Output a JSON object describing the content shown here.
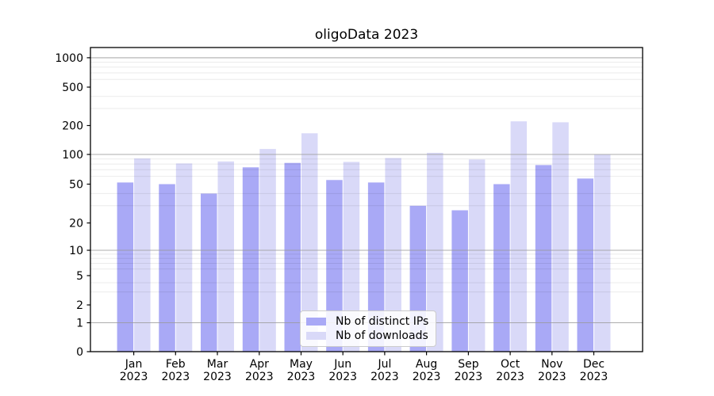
{
  "figure": {
    "title": "oligoData 2023",
    "background": "#ffffff"
  },
  "colors": {
    "distinct_ips_bar": "#a9a9f6",
    "downloads_bar": "#d9d9f8",
    "grid_major": "#b0b0b0",
    "grid_minor": "#ebebeb",
    "axis_spine": "#000000",
    "legend_border": "#cccccc"
  },
  "chart_data": {
    "type": "bar",
    "title": "oligoData 2023",
    "categories": [
      "Jan 2023",
      "Feb 2023",
      "Mar 2023",
      "Apr 2023",
      "May 2023",
      "Jun 2023",
      "Jul 2023",
      "Aug 2023",
      "Sep 2023",
      "Oct 2023",
      "Nov 2023",
      "Dec 2023"
    ],
    "series": [
      {
        "key": "distinct-ips",
        "name": "Nb of distinct IPs",
        "color": "#a9a9f6",
        "values": [
          52,
          50,
          40,
          74,
          82,
          55,
          52,
          30,
          27,
          50,
          78,
          57
        ]
      },
      {
        "key": "downloads",
        "name": "Nb of downloads",
        "color": "#d9d9f8",
        "values": [
          91,
          81,
          85,
          114,
          166,
          84,
          92,
          104,
          89,
          221,
          216,
          100
        ]
      }
    ],
    "xlabel": "",
    "ylabel": "",
    "yscale": "symlog",
    "yticks": [
      0,
      1,
      2,
      5,
      10,
      20,
      50,
      100,
      200,
      500,
      1000
    ],
    "ytick_labels": [
      "0",
      "1",
      "2",
      "5",
      "10",
      "20",
      "50",
      "100",
      "200",
      "500",
      "1000"
    ],
    "major_grid_values": [
      1,
      10,
      100,
      1000
    ],
    "minor_grid_values": [
      3,
      4,
      6,
      7,
      8,
      9,
      30,
      40,
      60,
      70,
      80,
      90,
      300,
      400,
      600,
      700,
      800,
      900
    ],
    "ylim": [
      0,
      1300
    ],
    "grid": "major and minor horizontal gridlines drawn above bars",
    "legend_position": "lower center"
  }
}
